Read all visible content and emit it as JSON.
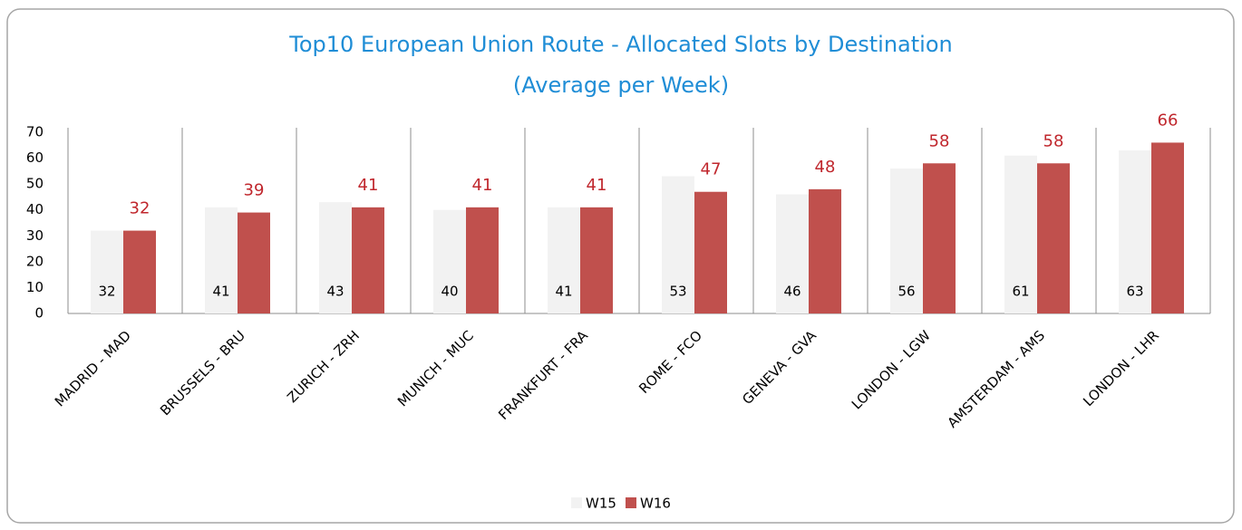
{
  "chart_data": {
    "type": "bar",
    "title": "Top10 European Union Route - Allocated Slots by Destination",
    "subtitle": "(Average per Week)",
    "categories": [
      "MADRID - MAD",
      "BRUSSELS - BRU",
      "ZURICH - ZRH",
      "MUNICH - MUC",
      "FRANKFURT - FRA",
      "ROME - FCO",
      "GENEVA - GVA",
      "LONDON - LGW",
      "AMSTERDAM - AMS",
      "LONDON - LHR"
    ],
    "series": [
      {
        "name": "W15",
        "color": "#f2f2f2",
        "label_color": "#000000",
        "values": [
          32,
          41,
          43,
          40,
          41,
          53,
          46,
          56,
          61,
          63
        ]
      },
      {
        "name": "W16",
        "color": "#c0504d",
        "label_color": "#c0272d",
        "values": [
          32,
          39,
          41,
          41,
          41,
          47,
          48,
          58,
          58,
          66
        ]
      }
    ],
    "ylim": [
      0,
      70
    ],
    "yticks": [
      0,
      10,
      20,
      30,
      40,
      50,
      60,
      70
    ],
    "grid": false,
    "legend": "bottom"
  }
}
